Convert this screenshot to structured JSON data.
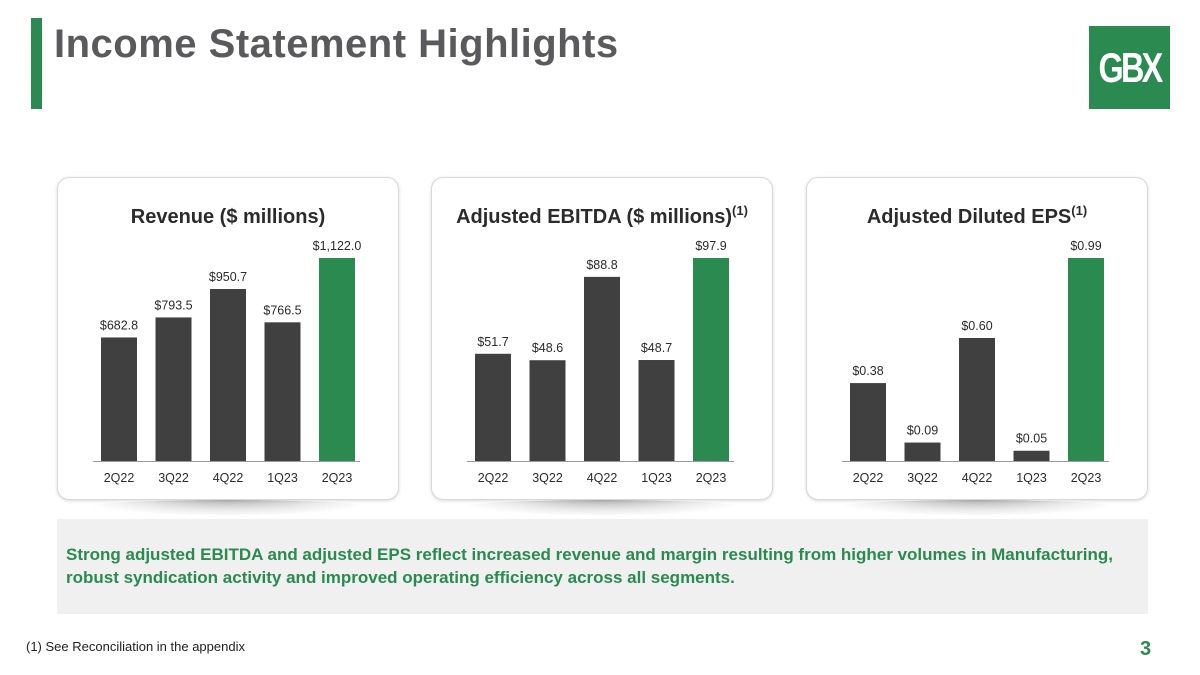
{
  "header": {
    "title": "Income Statement Highlights",
    "logo_text": "GBX"
  },
  "colors": {
    "accent": "#2a8a4f",
    "bar_dark": "#404040",
    "bar_highlight": "#2a8a4f"
  },
  "chart_data": [
    {
      "type": "bar",
      "title": "Revenue ($ millions)",
      "title_sup": "",
      "categories": [
        "2Q22",
        "3Q22",
        "4Q22",
        "1Q23",
        "2Q23"
      ],
      "values": [
        682.8,
        793.5,
        950.7,
        766.5,
        1122.0
      ],
      "labels": [
        "$682.8",
        "$793.5",
        "$950.7",
        "$766.5",
        "$1,122.0"
      ],
      "highlight_index": 4,
      "ylim": [
        0,
        1122.0
      ],
      "xlabel": "",
      "ylabel": ""
    },
    {
      "type": "bar",
      "title": "Adjusted EBITDA ($ millions)",
      "title_sup": "(1)",
      "categories": [
        "2Q22",
        "3Q22",
        "4Q22",
        "1Q23",
        "2Q23"
      ],
      "values": [
        51.7,
        48.6,
        88.8,
        48.7,
        97.9
      ],
      "labels": [
        "$51.7",
        "$48.6",
        "$88.8",
        "$48.7",
        "$97.9"
      ],
      "highlight_index": 4,
      "ylim": [
        0,
        97.9
      ],
      "xlabel": "",
      "ylabel": ""
    },
    {
      "type": "bar",
      "title": "Adjusted Diluted EPS",
      "title_sup": "(1)",
      "categories": [
        "2Q22",
        "3Q22",
        "4Q22",
        "1Q23",
        "2Q23"
      ],
      "values": [
        0.38,
        0.09,
        0.6,
        0.05,
        0.99
      ],
      "labels": [
        "$0.38",
        "$0.09",
        "$0.60",
        "$0.05",
        "$0.99"
      ],
      "highlight_index": 4,
      "ylim": [
        0,
        0.99
      ],
      "xlabel": "",
      "ylabel": ""
    }
  ],
  "callout": {
    "text": "Strong adjusted EBITDA and adjusted EPS reflect increased revenue and margin resulting from higher volumes in Manufacturing, robust syndication activity and improved operating efficiency across all segments."
  },
  "footer": {
    "footnote": "(1) See Reconciliation in the appendix",
    "page_number": "3"
  }
}
